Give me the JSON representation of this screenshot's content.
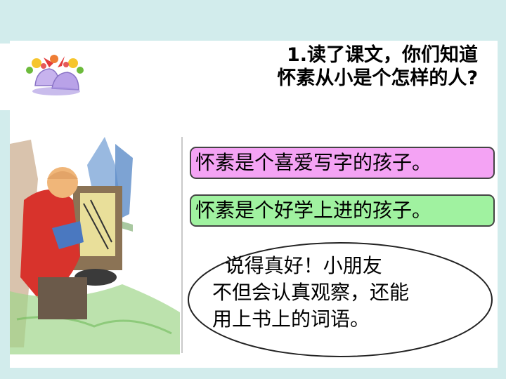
{
  "question": {
    "line1": "1.读了课文，你们知道",
    "line2": "怀素从小是个怎样的人?"
  },
  "answers": [
    {
      "text": "怀素是个喜爱写字的孩子。",
      "color": "#f4a3f4"
    },
    {
      "text": "怀素是个好学上进的孩子。",
      "color": "#a0f2a0"
    }
  ],
  "praise": {
    "line1": "  说得真好！小朋友",
    "line2": "不但会认真观察，还能",
    "line3": "用上书上的词语。"
  },
  "illustration": {
    "decoration": "bells-with-flowers-icon",
    "scene": "boy-writing-calligraphy"
  },
  "colors": {
    "background": "#d2ecec",
    "slide": "#ffffff"
  }
}
